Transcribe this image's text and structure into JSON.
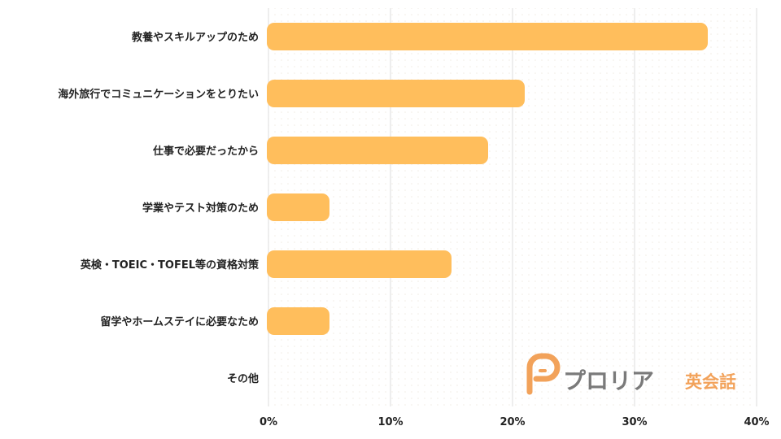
{
  "chart_data": {
    "type": "bar",
    "orientation": "horizontal",
    "categories": [
      "教養やスキルアップのため",
      "海外旅行でコミュニケーションをとりたい",
      "仕事で必要だったから",
      "学業やテスト対策のため",
      "英検・TOEIC・TOFEL等の資格対策",
      "留学やホームステイに必要なため",
      "その他"
    ],
    "values": [
      36,
      21,
      18,
      5,
      15,
      5,
      0
    ],
    "xlim": [
      0,
      40
    ],
    "xticks": [
      0,
      10,
      20,
      30,
      40
    ],
    "xtick_labels": [
      "0%",
      "10%",
      "20%",
      "30%",
      "40%"
    ],
    "title": "",
    "xlabel": "",
    "ylabel": "",
    "grid": "vertical",
    "bar_color": "#ffbe5c"
  },
  "logo": {
    "name": "プロリア",
    "suffix": "英会話",
    "icon": "p-logo-icon",
    "colors": {
      "icon": "#f2a25a",
      "name": "#7a7a7a",
      "suffix": "#f2a25a"
    }
  }
}
